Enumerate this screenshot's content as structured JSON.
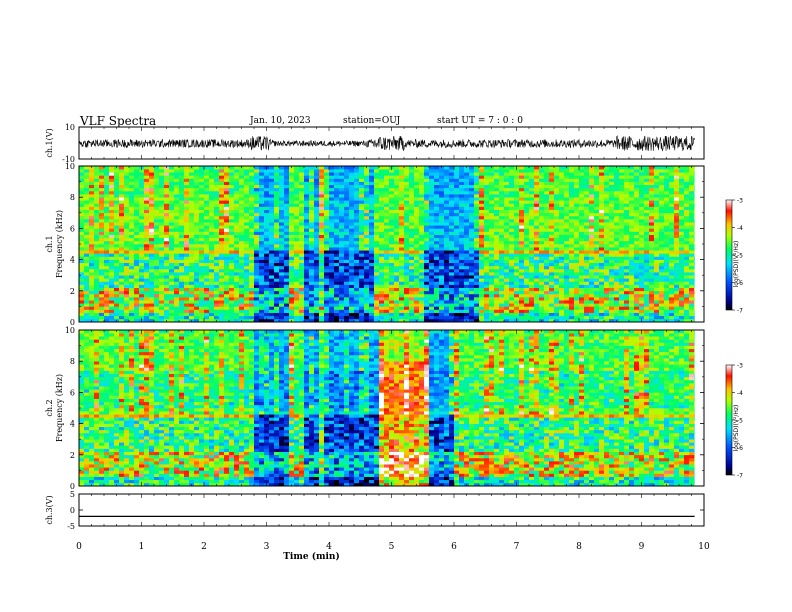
{
  "header": {
    "title": "VLF Spectra",
    "date": "Jan. 10, 2023",
    "station": "station=OUJ",
    "start": "start  UT =  7 : 0  : 0"
  },
  "chart_data": [
    {
      "type": "line",
      "panel": "ch1-waveform",
      "ylabel": "ch.1(V)",
      "ylim": [
        -10,
        10
      ],
      "yticks": [
        "10",
        "-10"
      ],
      "note": "dense waveform, amplitude roughly ±3 V with bursts near 2.8-3.0, 4.7-5.2 and 8.6-9.8 min"
    },
    {
      "type": "heatmap",
      "panel": "ch1-spectrogram",
      "ylabel": "ch.1\nFrequency (kHz)",
      "ylim": [
        0,
        10
      ],
      "yticks": [
        "0",
        "2",
        "4",
        "6",
        "8",
        "10"
      ],
      "colorbar": {
        "label": "log(PSD)(V²/Hz)",
        "range": [
          -7,
          -3
        ],
        "ticks": [
          "-3",
          "-4",
          "-5",
          "-6",
          "-7"
        ]
      }
    },
    {
      "type": "heatmap",
      "panel": "ch2-spectrogram",
      "ylabel": "ch.2\nFrequency (kHz)",
      "ylim": [
        0,
        10
      ],
      "yticks": [
        "0",
        "2",
        "4",
        "6",
        "8",
        "10"
      ],
      "colorbar": {
        "label": "log(PSD)(V²/Hz)",
        "range": [
          -7,
          -3
        ],
        "ticks": [
          "-3",
          "-4",
          "-5",
          "-6",
          "-7"
        ]
      }
    },
    {
      "type": "line",
      "panel": "ch3-waveform",
      "ylabel": "ch.3(V)",
      "ylim": [
        -5,
        5
      ],
      "yticks": [
        "5",
        "0",
        "-5"
      ],
      "x": [
        0,
        9.85
      ],
      "y": [
        -2,
        -2
      ]
    }
  ],
  "xaxis": {
    "label": "Time (min)",
    "range": [
      0,
      10
    ],
    "ticks": [
      "0",
      "1",
      "2",
      "3",
      "4",
      "5",
      "6",
      "7",
      "8",
      "9",
      "10"
    ]
  }
}
